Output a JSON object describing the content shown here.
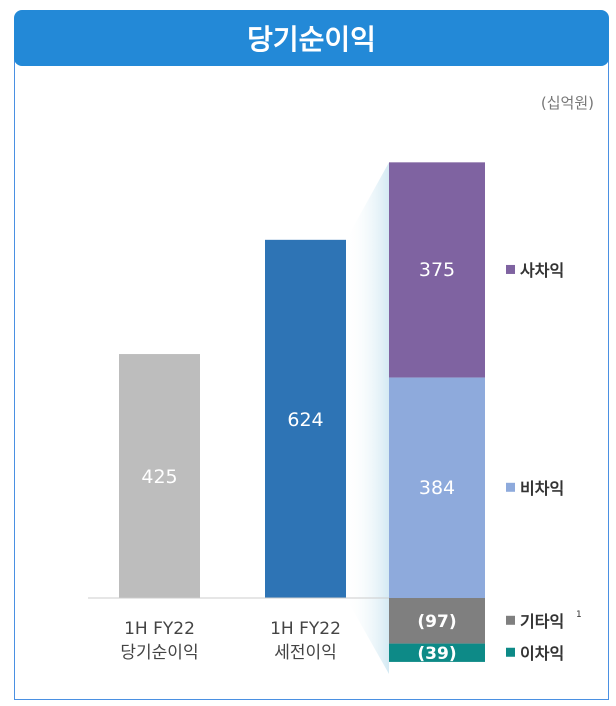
{
  "title": "당기순이익",
  "unit": "(십억원)",
  "colors": {
    "title_bg": "#2389d7",
    "net_income": "#bdbdbd",
    "pretax": "#2e74b5",
    "fee": "#7f63a1",
    "non_interest": "#8eaadc",
    "other": "#7f7f7f",
    "interest": "#0d8a87"
  },
  "chart_data": {
    "type": "bar",
    "categories": [
      "1H FY22\n당기순이익",
      "1H FY22\n세전이익"
    ],
    "values": [
      425,
      624
    ],
    "breakdown": [
      {
        "name": "사차익",
        "value": 375,
        "label": "375"
      },
      {
        "name": "비차익",
        "value": 384,
        "label": "384"
      },
      {
        "name": "기타익",
        "value": -97,
        "label": "(97)",
        "superscript": "1"
      },
      {
        "name": "이차익",
        "value": -39,
        "label": "(39)"
      }
    ]
  }
}
